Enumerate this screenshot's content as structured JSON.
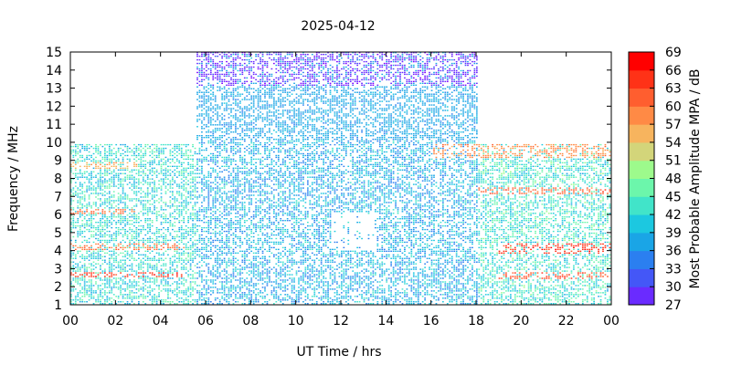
{
  "chart_data": {
    "type": "heatmap",
    "title": "2025-04-12",
    "xlabel": "UT Time / hrs",
    "ylabel": "Frequency / MHz",
    "colorbar_label": "Most Probable Amplitude MPA / dB",
    "x_ticks": [
      "00",
      "02",
      "04",
      "06",
      "08",
      "10",
      "12",
      "14",
      "16",
      "18",
      "20",
      "22",
      "00"
    ],
    "xlim": [
      0,
      24
    ],
    "y_ticks": [
      "1",
      "2",
      "3",
      "4",
      "5",
      "6",
      "7",
      "8",
      "9",
      "10",
      "11",
      "12",
      "13",
      "14",
      "15"
    ],
    "ylim": [
      1,
      15
    ],
    "colorbar_ticks": [
      "27",
      "30",
      "33",
      "36",
      "39",
      "42",
      "45",
      "48",
      "51",
      "54",
      "57",
      "60",
      "63",
      "66",
      "69"
    ],
    "colorbar_range": [
      27,
      69
    ],
    "colorscale": [
      {
        "value": 27,
        "color": "#8000ff"
      },
      {
        "value": 30,
        "color": "#6a2bff"
      },
      {
        "value": 33,
        "color": "#4457f7"
      },
      {
        "value": 36,
        "color": "#2b7ff0"
      },
      {
        "value": 39,
        "color": "#1aa5e6"
      },
      {
        "value": 42,
        "color": "#1cc8e0"
      },
      {
        "value": 45,
        "color": "#41e4c9"
      },
      {
        "value": 48,
        "color": "#6cf6ab"
      },
      {
        "value": 51,
        "color": "#9dfa8c"
      },
      {
        "value": 54,
        "color": "#d3d57a"
      },
      {
        "value": 57,
        "color": "#f7b45e"
      },
      {
        "value": 60,
        "color": "#ff8a45"
      },
      {
        "value": 63,
        "color": "#ff5e2f"
      },
      {
        "value": 66,
        "color": "#ff3217"
      },
      {
        "value": 69,
        "color": "#ff0000"
      }
    ],
    "regions": [
      {
        "x": [
          0,
          5.5
        ],
        "y": [
          1,
          9.8
        ],
        "typical_db": 44
      },
      {
        "x": [
          5.5,
          18
        ],
        "y": [
          1,
          15
        ],
        "typical_db": 40
      },
      {
        "x": [
          18,
          24
        ],
        "y": [
          1,
          9.8
        ],
        "typical_db": 45
      }
    ],
    "strong_bands": [
      {
        "x": [
          0,
          5
        ],
        "y": [
          2.5,
          2.8
        ],
        "db": 66
      },
      {
        "x": [
          0,
          5
        ],
        "y": [
          4.0,
          4.4
        ],
        "db": 62
      },
      {
        "x": [
          19,
          24
        ],
        "y": [
          3.8,
          4.4
        ],
        "db": 66
      },
      {
        "x": [
          19,
          24
        ],
        "y": [
          2.4,
          2.8
        ],
        "db": 64
      },
      {
        "x": [
          18,
          24
        ],
        "y": [
          7.0,
          7.4
        ],
        "db": 63
      },
      {
        "x": [
          16,
          24
        ],
        "y": [
          9.0,
          9.8
        ],
        "db": 60
      },
      {
        "x": [
          0,
          3
        ],
        "y": [
          8.4,
          8.8
        ],
        "db": 57
      },
      {
        "x": [
          0,
          3
        ],
        "y": [
          5.9,
          6.2
        ],
        "db": 62
      },
      {
        "x": [
          5.5,
          18
        ],
        "y": [
          13.0,
          15.0
        ],
        "db": 30
      }
    ]
  }
}
